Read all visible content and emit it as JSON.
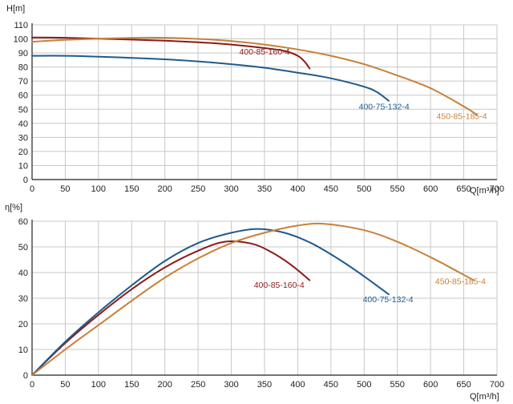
{
  "chart_data": [
    {
      "type": "line",
      "ylabel": "H[m]",
      "xlabel": "Q[m³/h]",
      "xlim": [
        0,
        700
      ],
      "ylim": [
        0,
        110
      ],
      "x_ticks": [
        0,
        50,
        100,
        150,
        200,
        250,
        300,
        350,
        400,
        450,
        500,
        550,
        600,
        650,
        700
      ],
      "y_ticks": [
        0,
        10,
        20,
        30,
        40,
        50,
        60,
        70,
        80,
        90,
        100,
        110
      ],
      "grid": true,
      "series": [
        {
          "name": "400-85-160-4",
          "color": "#8b1a1a",
          "label_at": [
            350,
            89
          ],
          "points": [
            [
              0,
              101
            ],
            [
              50,
              100.8
            ],
            [
              100,
              100.2
            ],
            [
              150,
              99.5
            ],
            [
              200,
              98.7
            ],
            [
              250,
              97.6
            ],
            [
              300,
              96
            ],
            [
              350,
              93.5
            ],
            [
              380,
              91.5
            ],
            [
              400,
              88
            ],
            [
              410,
              84
            ],
            [
              418,
              79
            ]
          ]
        },
        {
          "name": "400-75-132-4",
          "color": "#1f5a8c",
          "label_at": [
            530,
            50
          ],
          "points": [
            [
              0,
              88
            ],
            [
              50,
              88
            ],
            [
              100,
              87.4
            ],
            [
              150,
              86.5
            ],
            [
              200,
              85.5
            ],
            [
              250,
              84
            ],
            [
              300,
              82
            ],
            [
              350,
              79.5
            ],
            [
              400,
              76
            ],
            [
              450,
              72
            ],
            [
              500,
              66
            ],
            [
              520,
              62
            ],
            [
              537,
              56
            ]
          ]
        },
        {
          "name": "450-85-185-4",
          "color": "#c8803a",
          "label_at": [
            647,
            43
          ],
          "points": [
            [
              0,
              98
            ],
            [
              50,
              99.3
            ],
            [
              100,
              100.2
            ],
            [
              150,
              100.7
            ],
            [
              200,
              100.8
            ],
            [
              250,
              100
            ],
            [
              300,
              98.5
            ],
            [
              350,
              96
            ],
            [
              400,
              92.5
            ],
            [
              450,
              88
            ],
            [
              500,
              82
            ],
            [
              550,
              74
            ],
            [
              600,
              65
            ],
            [
              650,
              52
            ],
            [
              670,
              46
            ]
          ]
        }
      ]
    },
    {
      "type": "line",
      "ylabel": "η[%]",
      "xlabel": "Q[m³/h]",
      "xlim": [
        0,
        700
      ],
      "ylim": [
        0,
        60
      ],
      "x_ticks": [
        0,
        50,
        100,
        150,
        200,
        250,
        300,
        350,
        400,
        450,
        500,
        550,
        600,
        650,
        700
      ],
      "y_ticks": [
        0,
        10,
        20,
        30,
        40,
        50,
        60
      ],
      "grid": true,
      "series": [
        {
          "name": "400-85-160-4",
          "color": "#8b1a1a",
          "label_at": [
            372,
            34
          ],
          "points": [
            [
              0,
              0
            ],
            [
              50,
              12.5
            ],
            [
              100,
              23.5
            ],
            [
              150,
              33.5
            ],
            [
              200,
              42
            ],
            [
              250,
              48.5
            ],
            [
              290,
              52
            ],
            [
              330,
              51.3
            ],
            [
              360,
              48
            ],
            [
              390,
              43
            ],
            [
              418,
              37
            ]
          ]
        },
        {
          "name": "400-75-132-4",
          "color": "#1f5a8c",
          "label_at": [
            536,
            28.5
          ],
          "points": [
            [
              0,
              0
            ],
            [
              50,
              13
            ],
            [
              100,
              24.5
            ],
            [
              150,
              35
            ],
            [
              200,
              44.5
            ],
            [
              250,
              51.5
            ],
            [
              300,
              55.5
            ],
            [
              340,
              57
            ],
            [
              380,
              55.5
            ],
            [
              420,
              51.5
            ],
            [
              460,
              45.5
            ],
            [
              500,
              38.5
            ],
            [
              537,
              31.5
            ]
          ]
        },
        {
          "name": "450-85-185-4",
          "color": "#c8803a",
          "label_at": [
            645,
            35.5
          ],
          "points": [
            [
              0,
              0
            ],
            [
              50,
              10
            ],
            [
              100,
              19.5
            ],
            [
              150,
              29
            ],
            [
              200,
              38
            ],
            [
              250,
              45.5
            ],
            [
              300,
              51.5
            ],
            [
              350,
              55.5
            ],
            [
              400,
              58.3
            ],
            [
              440,
              59
            ],
            [
              500,
              56.5
            ],
            [
              550,
              52
            ],
            [
              600,
              46
            ],
            [
              640,
              40.5
            ],
            [
              665,
              37
            ]
          ]
        }
      ]
    }
  ]
}
